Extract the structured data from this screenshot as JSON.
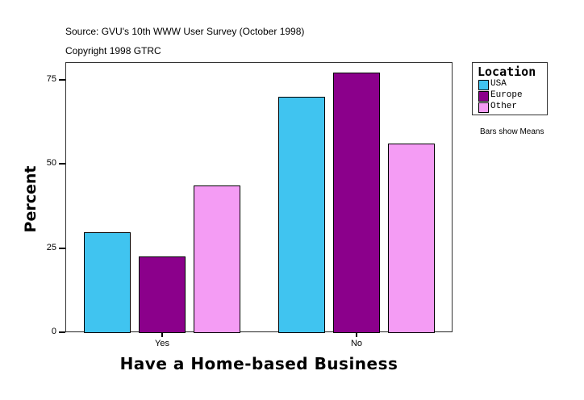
{
  "chart_data": {
    "type": "bar",
    "title": "",
    "source_lines": [
      "Source: GVU's 10th WWW User Survey (October 1998)",
      "Copyright 1998 GTRC"
    ],
    "xlabel": "Have a Home-based Business",
    "ylabel": "Percent",
    "categories": [
      "Yes",
      "No"
    ],
    "series": [
      {
        "name": "USA",
        "color": "#40c4f0",
        "values": [
          29.7,
          69.9
        ]
      },
      {
        "name": "Europe",
        "color": "#8b008b",
        "values": [
          22.5,
          77.0
        ]
      },
      {
        "name": "Other",
        "color": "#f49cf4",
        "values": [
          43.6,
          56.0
        ]
      }
    ],
    "yticks": [
      0,
      25,
      50,
      75
    ],
    "ylim": [
      0,
      80
    ],
    "grid": false,
    "legend": {
      "title": "Location",
      "position": "right"
    },
    "note": "Bars show Means"
  },
  "header": {
    "source": "Source: GVU's 10th WWW User Survey (October 1998)",
    "copyright": "Copyright 1998 GTRC"
  },
  "axis": {
    "y_title": "Percent",
    "x_title": "Have a Home-based Business",
    "y_ticks": [
      "0",
      "25",
      "50",
      "75"
    ],
    "x_ticks": [
      "Yes",
      "No"
    ]
  },
  "legend": {
    "title": "Location",
    "items": [
      {
        "label": "USA",
        "color": "#40c4f0"
      },
      {
        "label": "Europe",
        "color": "#8b008b"
      },
      {
        "label": "Other",
        "color": "#f49cf4"
      }
    ]
  },
  "note": "Bars show Means"
}
